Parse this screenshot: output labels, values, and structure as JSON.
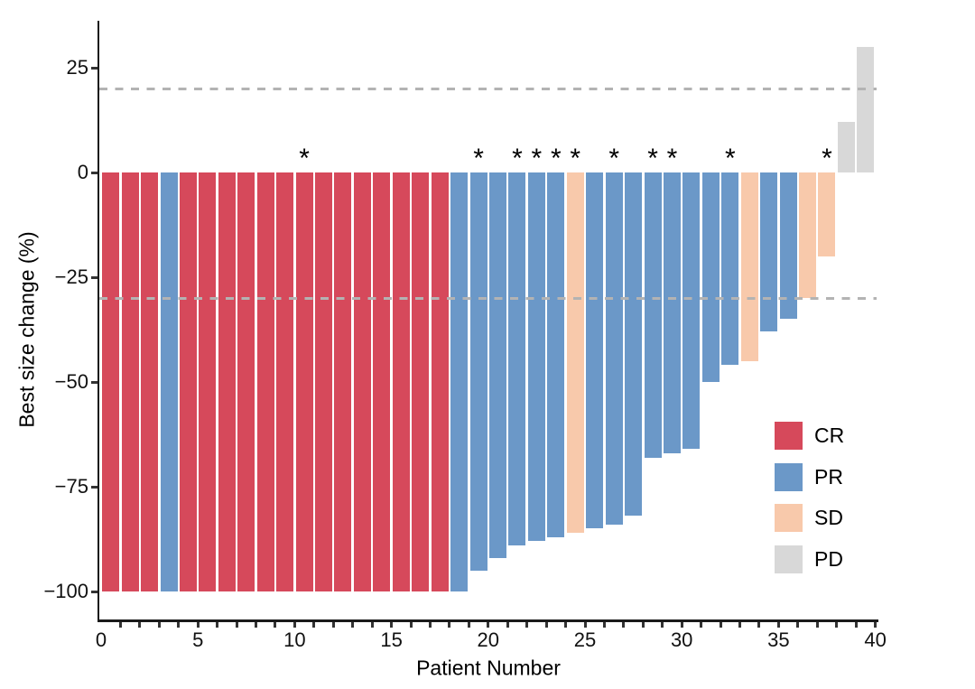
{
  "chart_data": {
    "type": "bar",
    "subtype": "waterfall",
    "title": "",
    "xlabel": "Patient Number",
    "ylabel": "Best size change (%)",
    "xlim": [
      0,
      40
    ],
    "ylim": [
      -107,
      36
    ],
    "grid": "off",
    "y_ticks": [
      {
        "value": 25,
        "label": "25"
      },
      {
        "value": 0,
        "label": "0"
      },
      {
        "value": -25,
        "label": "−25"
      },
      {
        "value": -50,
        "label": "−50"
      },
      {
        "value": -75,
        "label": "−75"
      },
      {
        "value": -100,
        "label": "−100"
      }
    ],
    "x_tick_labels": [
      {
        "value": 0,
        "label": "0"
      },
      {
        "value": 5,
        "label": "5"
      },
      {
        "value": 10,
        "label": "10"
      },
      {
        "value": 15,
        "label": "15"
      },
      {
        "value": 20,
        "label": "20"
      },
      {
        "value": 25,
        "label": "25"
      },
      {
        "value": 30,
        "label": "30"
      },
      {
        "value": 35,
        "label": "35"
      },
      {
        "value": 40,
        "label": "40"
      }
    ],
    "reference_lines": [
      {
        "name": "upper",
        "value": 20,
        "style": "dashed",
        "color": "#b3b3b3"
      },
      {
        "name": "lower",
        "value": -30,
        "style": "dashed",
        "color": "#b3b3b3"
      }
    ],
    "colors": {
      "CR": "#d6495b",
      "PR": "#6b98c8",
      "SD": "#f8c9ab",
      "PD": "#d8d8d8",
      "axis": "#1a1a1a",
      "dashed_line": "#b3b3b3"
    },
    "legend": {
      "position": "right-center",
      "entries": [
        {
          "label": "CR",
          "color": "#d6495b"
        },
        {
          "label": "PR",
          "color": "#6b98c8"
        },
        {
          "label": "SD",
          "color": "#f8c9ab"
        },
        {
          "label": "PD",
          "color": "#d8d8d8"
        }
      ]
    },
    "bars": [
      {
        "patient": 1,
        "response": "CR",
        "value": -100,
        "star": false
      },
      {
        "patient": 2,
        "response": "CR",
        "value": -100,
        "star": false
      },
      {
        "patient": 3,
        "response": "CR",
        "value": -100,
        "star": false
      },
      {
        "patient": 4,
        "response": "PR",
        "value": -100,
        "star": false
      },
      {
        "patient": 5,
        "response": "CR",
        "value": -100,
        "star": false
      },
      {
        "patient": 6,
        "response": "CR",
        "value": -100,
        "star": false
      },
      {
        "patient": 7,
        "response": "CR",
        "value": -100,
        "star": false
      },
      {
        "patient": 8,
        "response": "CR",
        "value": -100,
        "star": false
      },
      {
        "patient": 9,
        "response": "CR",
        "value": -100,
        "star": false
      },
      {
        "patient": 10,
        "response": "CR",
        "value": -100,
        "star": false
      },
      {
        "patient": 11,
        "response": "CR",
        "value": -100,
        "star": true
      },
      {
        "patient": 12,
        "response": "CR",
        "value": -100,
        "star": false
      },
      {
        "patient": 13,
        "response": "CR",
        "value": -100,
        "star": false
      },
      {
        "patient": 14,
        "response": "CR",
        "value": -100,
        "star": false
      },
      {
        "patient": 15,
        "response": "CR",
        "value": -100,
        "star": false
      },
      {
        "patient": 16,
        "response": "CR",
        "value": -100,
        "star": false
      },
      {
        "patient": 17,
        "response": "CR",
        "value": -100,
        "star": false
      },
      {
        "patient": 18,
        "response": "CR",
        "value": -100,
        "star": false
      },
      {
        "patient": 19,
        "response": "PR",
        "value": -100,
        "star": false
      },
      {
        "patient": 20,
        "response": "PR",
        "value": -95,
        "star": true
      },
      {
        "patient": 21,
        "response": "PR",
        "value": -92,
        "star": false
      },
      {
        "patient": 22,
        "response": "PR",
        "value": -89,
        "star": true
      },
      {
        "patient": 23,
        "response": "PR",
        "value": -88,
        "star": true
      },
      {
        "patient": 24,
        "response": "PR",
        "value": -87,
        "star": true
      },
      {
        "patient": 25,
        "response": "SD",
        "value": -86,
        "star": true
      },
      {
        "patient": 26,
        "response": "PR",
        "value": -85,
        "star": false
      },
      {
        "patient": 27,
        "response": "PR",
        "value": -84,
        "star": true
      },
      {
        "patient": 28,
        "response": "PR",
        "value": -82,
        "star": false
      },
      {
        "patient": 29,
        "response": "PR",
        "value": -68,
        "star": true
      },
      {
        "patient": 30,
        "response": "PR",
        "value": -67,
        "star": true
      },
      {
        "patient": 31,
        "response": "PR",
        "value": -66,
        "star": false
      },
      {
        "patient": 32,
        "response": "PR",
        "value": -50,
        "star": false
      },
      {
        "patient": 33,
        "response": "PR",
        "value": -46,
        "star": true
      },
      {
        "patient": 34,
        "response": "SD",
        "value": -45,
        "star": false
      },
      {
        "patient": 35,
        "response": "PR",
        "value": -38,
        "star": false
      },
      {
        "patient": 36,
        "response": "PR",
        "value": -35,
        "star": false
      },
      {
        "patient": 37,
        "response": "SD",
        "value": -30,
        "star": false
      },
      {
        "patient": 38,
        "response": "SD",
        "value": -20,
        "star": true
      },
      {
        "patient": 39,
        "response": "PD",
        "value": 12,
        "star": false
      },
      {
        "patient": 40,
        "response": "PD",
        "value": 30,
        "star": false
      }
    ]
  }
}
